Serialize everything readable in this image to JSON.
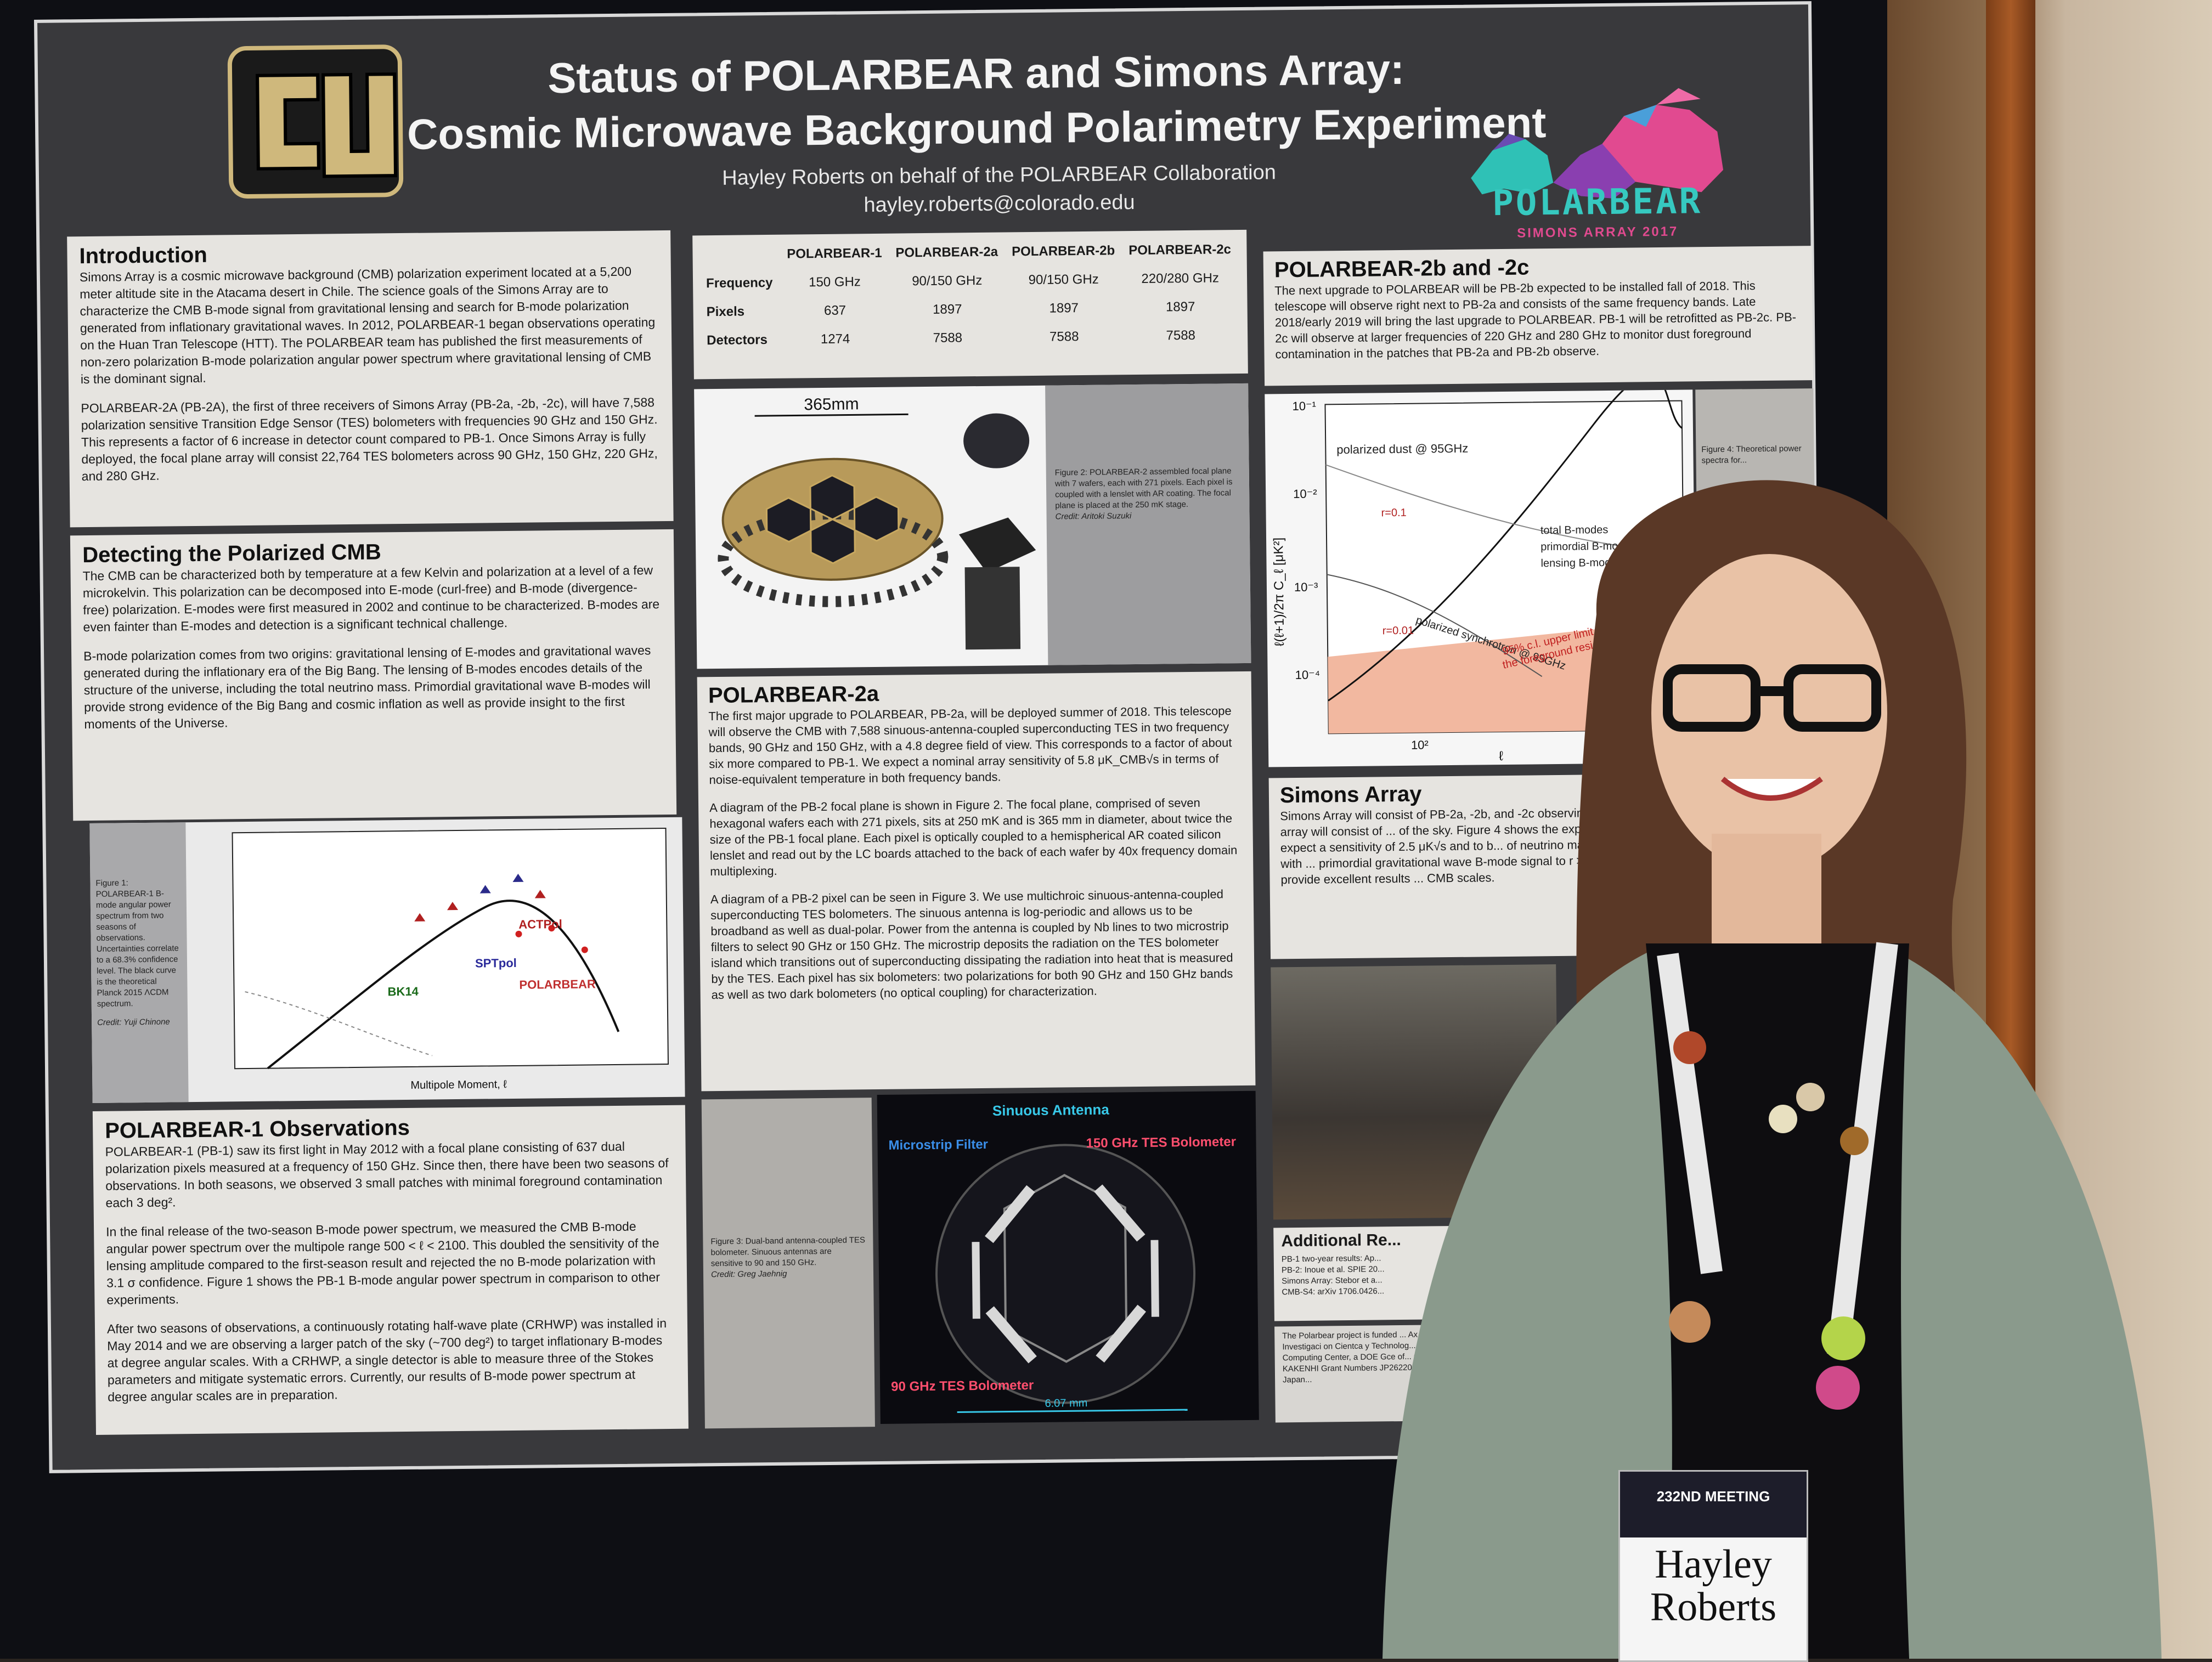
{
  "poster": {
    "title_line1": "Status of POLARBEAR and Simons Array:",
    "title_line2": "Cosmic Microwave Background Polarimetry Experiment",
    "author": "Hayley Roberts on behalf of the POLARBEAR Collaboration",
    "email": "hayley.roberts@colorado.edu",
    "logo_text": "POLARBEAR",
    "logo_sub": "SIMONS ARRAY 2017"
  },
  "intro": {
    "heading": "Introduction",
    "p1": "Simons Array is a cosmic microwave background (CMB) polarization experiment located at a 5,200 meter altitude site in the Atacama desert in Chile. The science goals of the Simons Array are to characterize the CMB B-mode signal from gravitational lensing and search for B-mode polarization generated from inflationary gravitational waves. In 2012, POLARBEAR-1 began observations operating on the Huan Tran Telescope (HTT). The POLARBEAR team has published the first measurements of non-zero polarization B-mode polarization angular power spectrum where gravitational lensing of CMB is the dominant signal.",
    "p2": "POLARBEAR-2A (PB-2A), the first of three receivers of Simons Array (PB-2a, -2b, -2c), will have 7,588 polarization sensitive Transition Edge Sensor (TES) bolometers with frequencies 90 GHz and 150 GHz. This represents a factor of 6 increase in detector count compared to PB-1. Once Simons Array is fully deployed, the focal plane array will consist 22,764 TES bolometers across 90 GHz, 150 GHz, 220 GHz, and 280 GHz."
  },
  "detect": {
    "heading": "Detecting the Polarized CMB",
    "p1": "The CMB can be characterized both by temperature at a few Kelvin and polarization at a level of a few microkelvin. This polarization can be decomposed into E-mode (curl-free) and B-mode (divergence-free) polarization. E-modes were first measured in 2002 and continue to be characterized. B-modes are even fainter than E-modes and detection is a significant technical challenge.",
    "p2": "B-mode polarization comes from two origins: gravitational lensing of E-modes and gravitational waves generated during the inflationary era of the Big Bang. The lensing of B-modes encodes details of the structure of the universe, including the total neutrino mass. Primordial gravitational wave B-modes will provide strong evidence of the Big Bang and cosmic inflation as well as provide insight to the first moments of the Universe."
  },
  "fig1": {
    "caption": "Figure 1: POLARBEAR-1 B-mode angular power spectrum from two seasons of observations. Uncertainties correlate to a 68.3% confidence level. The black curve is the theoretical Planck 2015 ΛCDM spectrum.",
    "credit": "Credit: Yuji Chinone",
    "xlabel": "Multipole Moment, ℓ",
    "labels": [
      "ACTPol",
      "SPTpol",
      "BK14",
      "POLARBEAR"
    ]
  },
  "obs": {
    "heading": "POLARBEAR-1 Observations",
    "p1": "POLARBEAR-1 (PB-1) saw its first light in May 2012 with a focal plane consisting of 637 dual polarization pixels measured at a frequency of 150 GHz. Since then, there have been two seasons of observations. In both seasons, we observed 3 small patches with minimal foreground contamination each 3 deg².",
    "p2": "In the final release of the two-season B-mode power spectrum, we measured the CMB B-mode angular power spectrum over the multipole range 500 < ℓ < 2100. This doubled the sensitivity of the lensing amplitude compared to the first-season result and rejected the no B-mode polarization with 3.1 σ confidence. Figure 1 shows the PB-1 B-mode angular power spectrum in comparison to other experiments.",
    "p3": "After two seasons of observations, a continuously rotating half-wave plate (CRHWP) was installed in May 2014 and we are observing a larger patch of the sky (~700 deg²) to target inflationary B-modes at degree angular scales. With a CRHWP, a single detector is able to measure three of the Stokes parameters and mitigate systematic errors. Currently, our results of B-mode power spectrum at degree angular scales are in preparation."
  },
  "table": {
    "headers": [
      "",
      "POLARBEAR-1",
      "POLARBEAR-2a",
      "POLARBEAR-2b",
      "POLARBEAR-2c"
    ],
    "rows": [
      [
        "Frequency",
        "150 GHz",
        "90/150 GHz",
        "90/150 GHz",
        "220/280 GHz"
      ],
      [
        "Pixels",
        "637",
        "1897",
        "1897",
        "1897"
      ],
      [
        "Detectors",
        "1274",
        "7588",
        "7588",
        "7588"
      ]
    ]
  },
  "fig2": {
    "dimension": "365mm",
    "caption": "Figure 2: POLARBEAR-2 assembled focal plane with 7 wafers, each with 271 pixels. Each pixel is coupled with a lenslet with AR coating. The focal plane is placed at the 250 mK stage.",
    "credit": "Credit: Aritoki Suzuki"
  },
  "pb2a": {
    "heading": "POLARBEAR-2a",
    "p1": "The first major upgrade to POLARBEAR, PB-2a, will be deployed summer of 2018. This telescope will observe the CMB with 7,588 sinuous-antenna-coupled superconducting TES in two frequency bands, 90 GHz and 150 GHz, with a 4.8 degree field of view. This corresponds to a factor of about six more compared to PB-1. We expect a nominal array sensitivity of 5.8 μK_CMB√s in terms of noise-equivalent temperature in both frequency bands.",
    "p2": "A diagram of the PB-2 focal plane is shown in Figure 2. The focal plane, comprised of seven hexagonal wafers each with 271 pixels, sits at 250 mK and is 365 mm in diameter, about twice the size of the PB-1 focal plane. Each pixel is optically coupled to a hemispherical AR coated silicon lenslet and read out by the LC boards attached to the back of each wafer by 40x frequency domain multiplexing.",
    "p3": "A diagram of a PB-2 pixel can be seen in Figure 3. We use multichroic sinuous-antenna-coupled superconducting TES bolometers. The sinuous antenna is log-periodic and allows us to be broadband as well as dual-polar. Power from the antenna is coupled by Nb lines to two microstrip filters to select 90 GHz or 150 GHz. The microstrip deposits the radiation on the TES bolometer island which transitions out of superconducting dissipating the radiation into heat that is measured by the TES. Each pixel has six bolometers: two polarizations for both 90 GHz and 150 GHz bands as well as two dark bolometers (no optical coupling) for characterization."
  },
  "fig3": {
    "caption": "Figure 3: Dual-band antenna-coupled TES bolometer. Sinuous antennas are sensitive to 90 and 150 GHz.",
    "credit": "Credit: Greg Jaehnig",
    "label_antenna": "Sinuous Antenna",
    "label_filter": "Microstrip Filter",
    "label_150": "150 GHz TES Bolometer",
    "label_90": "90 GHz TES Bolometer",
    "scale": "6.07 mm"
  },
  "pb2b": {
    "heading": "POLARBEAR-2b and -2c",
    "p1": "The next upgrade to POLARBEAR will be PB-2b expected to be installed fall of 2018. This telescope will observe right next to PB-2a and consists of the same frequency bands. Late 2018/early 2019 will bring the last upgrade to POLARBEAR. PB-1 will be retrofitted as PB-2c. PB-2c will observe at larger frequencies of 220 GHz and 280 GHz to monitor dust foreground contamination in the patches that PB-2a and PB-2b observe."
  },
  "fig4": {
    "caption": "Figure 4: Theoretical power spectra for...",
    "legend": [
      "total B-modes",
      "primordial B-modes",
      "lensing B-modes"
    ],
    "labels": [
      "polarized dust @ 95GHz",
      "r=0.1",
      "r=0.01",
      "polarized synchrotron @ 95GHz",
      "95% c.l. upper limit",
      "the foreground residual"
    ],
    "xlabel": "ℓ",
    "ylabel": "ℓ(ℓ+1)/2π C_ℓ [μK²]",
    "yticks": [
      "10⁻¹",
      "10⁻²",
      "10⁻³",
      "10⁻⁴"
    ],
    "xtick": "10²"
  },
  "simons": {
    "heading": "Simons Array",
    "p1": "Simons Array will consist of PB-2a, -2b, and -2c observing at 90, 150, 220, and 280 GHz. The full array will consist of ... of the sky. Figure 4 shows the expected sensitivity of Si... observations. We expect a sensitivity of 2.5 μK√s and to b... of neutrino masses to 40 meV at 1σ (in combination with ... primordial gravitational wave B-mode signal to r > 0.0... Simons Array will be able to provide excellent results ... CMB scales."
  },
  "refs": {
    "heading": "Additional Re...",
    "lines": [
      "PB-1 two-year results: Ap...",
      "PB-2: Inoue et al. SPIE 20...",
      "Simons Array: Stebor et a...",
      "CMB-S4: arXiv 1706.0426..."
    ]
  },
  "ack": {
    "text": "The Polarbear project is funded ... Ax Observatory operates in the ... Investigaci on Cientca y Technolog... operated by the Computing Resou... Computing Center, a DOE Gce of... Contract No. DE-AC02-05CH11231... KAKENHI Grant Numbers JP26220... Center Initiative (WPI), MEXT, Japan..."
  },
  "badge": {
    "meeting": "232ND MEETING",
    "name_line1": "Hayley",
    "name_line2": "Roberts"
  }
}
